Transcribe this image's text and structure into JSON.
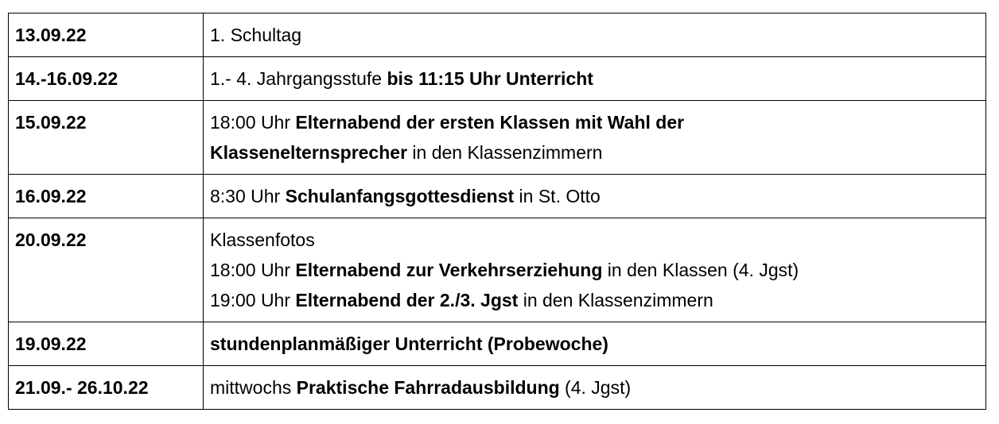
{
  "rows": [
    {
      "date": "13.09.22",
      "lines": [
        [
          {
            "text": "1. Schultag",
            "bold": false
          }
        ]
      ]
    },
    {
      "date": "14.-16.09.22",
      "lines": [
        [
          {
            "text": "1.- 4. Jahrgangsstufe ",
            "bold": false
          },
          {
            "text": "bis 11:15 Uhr Unterricht",
            "bold": true
          }
        ]
      ]
    },
    {
      "date": "15.09.22",
      "lines": [
        [
          {
            "text": "18:00 Uhr ",
            "bold": false
          },
          {
            "text": "Elternabend der ersten Klassen mit Wahl der",
            "bold": true
          }
        ],
        [
          {
            "text": "Klassenelternsprecher",
            "bold": true
          },
          {
            "text": " in den Klassenzimmern",
            "bold": false
          }
        ]
      ]
    },
    {
      "date": "16.09.22",
      "lines": [
        [
          {
            "text": "8:30 Uhr ",
            "bold": false
          },
          {
            "text": "Schulanfangsgottesdienst",
            "bold": true
          },
          {
            "text": " in St. Otto",
            "bold": false
          }
        ]
      ]
    },
    {
      "date": "20.09.22",
      "lines": [
        [
          {
            "text": "Klassenfotos",
            "bold": false
          }
        ],
        [
          {
            "text": "18:00 Uhr ",
            "bold": false
          },
          {
            "text": "Elternabend zur Verkehrserziehung",
            "bold": true
          },
          {
            "text": " in den Klassen (4. Jgst)",
            "bold": false
          }
        ],
        [
          {
            "text": "19:00 Uhr ",
            "bold": false
          },
          {
            "text": "Elternabend der 2./3. Jgst",
            "bold": true
          },
          {
            "text": " in den Klassenzimmern",
            "bold": false
          }
        ]
      ]
    },
    {
      "date": "19.09.22",
      "lines": [
        [
          {
            "text": "stundenplanmäßiger Unterricht (Probewoche)",
            "bold": true
          }
        ]
      ]
    },
    {
      "date": "21.09.- 26.10.22",
      "lines": [
        [
          {
            "text": "mittwochs ",
            "bold": false
          },
          {
            "text": "Praktische Fahrradausbildung",
            "bold": true
          },
          {
            "text": " (4. Jgst)",
            "bold": false
          }
        ]
      ]
    }
  ]
}
